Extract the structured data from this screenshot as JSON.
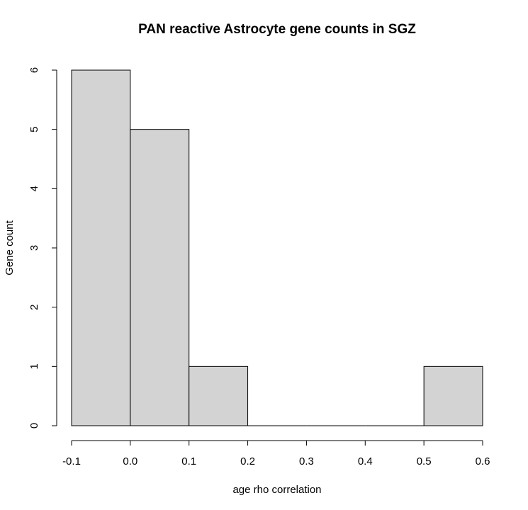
{
  "chart_data": {
    "type": "bar",
    "title": "PAN reactive Astrocyte gene counts in SGZ",
    "xlabel": "age rho correlation",
    "ylabel": "Gene count",
    "bins": [
      {
        "start": -0.1,
        "end": 0.0,
        "count": 6
      },
      {
        "start": 0.0,
        "end": 0.1,
        "count": 5
      },
      {
        "start": 0.1,
        "end": 0.2,
        "count": 1
      },
      {
        "start": 0.2,
        "end": 0.3,
        "count": 0
      },
      {
        "start": 0.3,
        "end": 0.4,
        "count": 0
      },
      {
        "start": 0.4,
        "end": 0.5,
        "count": 0
      },
      {
        "start": 0.5,
        "end": 0.6,
        "count": 1
      }
    ],
    "xticks": [
      -0.1,
      0.0,
      0.1,
      0.2,
      0.3,
      0.4,
      0.5,
      0.6
    ],
    "xtick_labels": [
      "-0.1",
      "0.0",
      "0.1",
      "0.2",
      "0.3",
      "0.4",
      "0.5",
      "0.6"
    ],
    "yticks": [
      0,
      1,
      2,
      3,
      4,
      5,
      6
    ],
    "ytick_labels": [
      "0",
      "1",
      "2",
      "3",
      "4",
      "5",
      "6"
    ],
    "xlim": [
      -0.1,
      0.6
    ],
    "ylim": [
      0,
      6
    ],
    "grid": false,
    "bar_color": "#d3d3d3",
    "edge_color": "#000000"
  }
}
